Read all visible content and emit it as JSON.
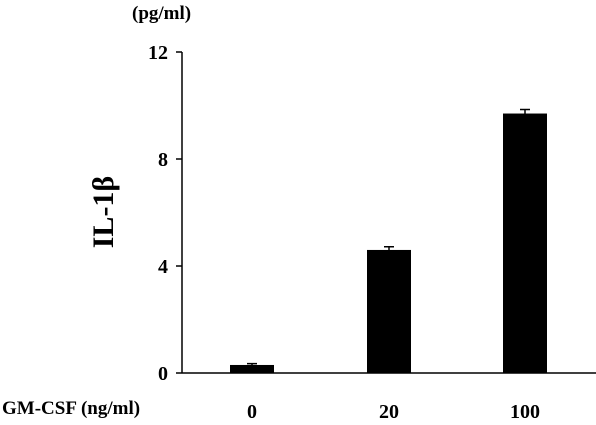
{
  "chart_data": {
    "type": "bar",
    "unit_label": "(pg/ml)",
    "ylabel": "IL-1β",
    "xlabel": "GM-CSF (ng/ml)",
    "categories": [
      "0",
      "20",
      "100"
    ],
    "values": [
      0.3,
      4.6,
      9.7
    ],
    "errors": [
      0.05,
      0.12,
      0.15
    ],
    "ylim": [
      0,
      12
    ],
    "yticks": [
      0,
      4,
      8,
      12
    ],
    "bar_color": "#000000"
  }
}
